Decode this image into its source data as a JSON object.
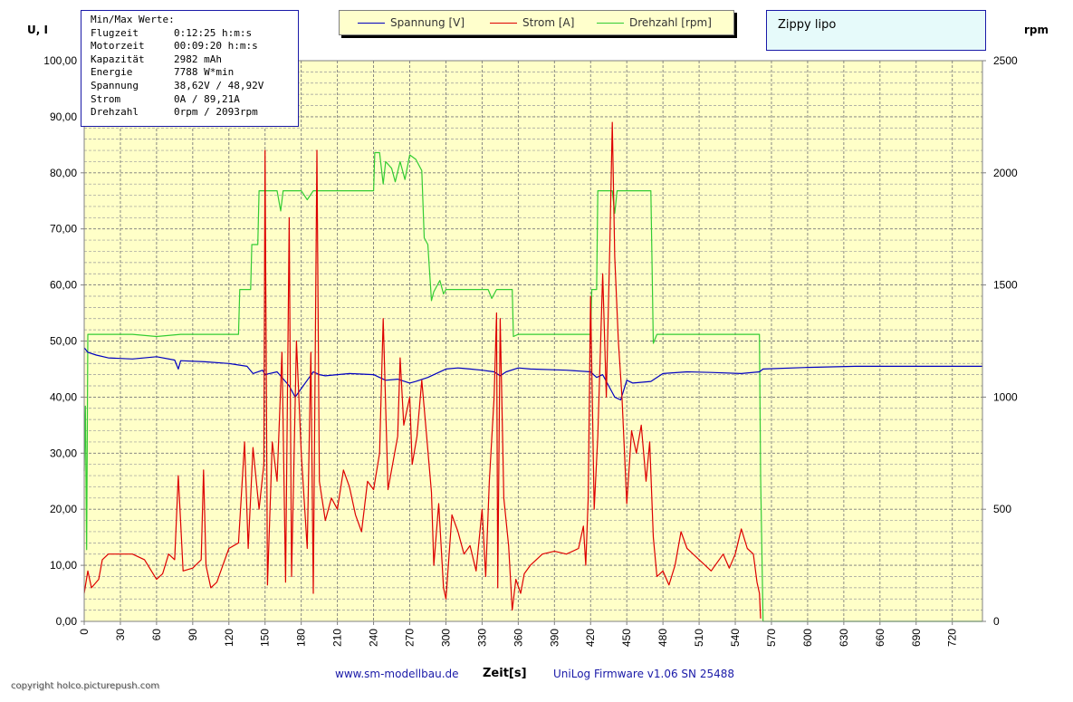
{
  "chart_data": {
    "type": "line",
    "title": "Zippy lipo",
    "xlabel": "Zeit[s]",
    "ylabel_left": "U, I",
    "ylabel_right": "rpm",
    "xlim": [
      0,
      745
    ],
    "ylim_left": [
      0,
      100
    ],
    "ylim_right": [
      0,
      2500
    ],
    "x_ticks": [
      "0",
      "30",
      "60",
      "90",
      "120",
      "150",
      "180",
      "210",
      "240",
      "270",
      "300",
      "330",
      "360",
      "390",
      "420",
      "450",
      "480",
      "510",
      "540",
      "570",
      "600",
      "630",
      "660",
      "690",
      "720"
    ],
    "y_ticks_left": [
      "0,00",
      "10,00",
      "20,00",
      "30,00",
      "40,00",
      "50,00",
      "60,00",
      "70,00",
      "80,00",
      "90,00",
      "100,00"
    ],
    "y_ticks_right": [
      "0",
      "500",
      "1000",
      "1500",
      "2000",
      "2500"
    ],
    "grid": true,
    "legend_position": "top-center",
    "background_color": "#ffffc8",
    "series": [
      {
        "name": "Spannung [V]",
        "axis": "left",
        "color": "#0000c0",
        "points": [
          [
            0,
            48.8
          ],
          [
            3,
            48.0
          ],
          [
            10,
            47.5
          ],
          [
            20,
            47.0
          ],
          [
            40,
            46.8
          ],
          [
            60,
            47.2
          ],
          [
            75,
            46.6
          ],
          [
            78,
            45.0
          ],
          [
            80,
            46.5
          ],
          [
            100,
            46.3
          ],
          [
            120,
            46.0
          ],
          [
            135,
            45.5
          ],
          [
            140,
            44.2
          ],
          [
            148,
            44.8
          ],
          [
            150,
            44.0
          ],
          [
            160,
            44.5
          ],
          [
            170,
            42.0
          ],
          [
            175,
            40.0
          ],
          [
            185,
            43.0
          ],
          [
            190,
            44.5
          ],
          [
            195,
            44.0
          ],
          [
            200,
            43.8
          ],
          [
            220,
            44.2
          ],
          [
            240,
            44.0
          ],
          [
            245,
            43.5
          ],
          [
            250,
            43.0
          ],
          [
            260,
            43.2
          ],
          [
            270,
            42.5
          ],
          [
            275,
            42.8
          ],
          [
            285,
            43.5
          ],
          [
            300,
            45.0
          ],
          [
            310,
            45.2
          ],
          [
            320,
            45.0
          ],
          [
            330,
            44.8
          ],
          [
            340,
            44.5
          ],
          [
            345,
            43.8
          ],
          [
            350,
            44.5
          ],
          [
            360,
            45.2
          ],
          [
            370,
            45.0
          ],
          [
            400,
            44.8
          ],
          [
            420,
            44.5
          ],
          [
            425,
            43.5
          ],
          [
            430,
            44.0
          ],
          [
            440,
            40.0
          ],
          [
            445,
            39.5
          ],
          [
            450,
            43.0
          ],
          [
            455,
            42.5
          ],
          [
            470,
            42.8
          ],
          [
            480,
            44.2
          ],
          [
            500,
            44.5
          ],
          [
            520,
            44.4
          ],
          [
            545,
            44.2
          ],
          [
            560,
            44.5
          ],
          [
            563,
            45.0
          ],
          [
            600,
            45.3
          ],
          [
            640,
            45.5
          ],
          [
            745,
            45.5
          ]
        ]
      },
      {
        "name": "Strom [A]",
        "axis": "left",
        "color": "#dd0000",
        "points": [
          [
            0,
            5.0
          ],
          [
            3,
            9.0
          ],
          [
            6,
            6.0
          ],
          [
            12,
            7.5
          ],
          [
            15,
            11.0
          ],
          [
            20,
            12.0
          ],
          [
            40,
            12.0
          ],
          [
            50,
            11.0
          ],
          [
            60,
            7.5
          ],
          [
            65,
            8.5
          ],
          [
            70,
            12.0
          ],
          [
            75,
            11.0
          ],
          [
            78,
            26.0
          ],
          [
            82,
            9.0
          ],
          [
            90,
            9.5
          ],
          [
            97,
            11.0
          ],
          [
            99,
            27.0
          ],
          [
            101,
            10.0
          ],
          [
            105,
            6.0
          ],
          [
            110,
            7.0
          ],
          [
            115,
            10.0
          ],
          [
            120,
            13.0
          ],
          [
            128,
            14.0
          ],
          [
            133,
            32.0
          ],
          [
            136,
            13.0
          ],
          [
            140,
            31.0
          ],
          [
            145,
            20.0
          ],
          [
            149,
            28.0
          ],
          [
            150,
            84.0
          ],
          [
            152,
            6.5
          ],
          [
            156,
            32.0
          ],
          [
            160,
            25.0
          ],
          [
            164,
            48.0
          ],
          [
            167,
            7.0
          ],
          [
            170,
            72.0
          ],
          [
            172,
            8.0
          ],
          [
            176,
            50.0
          ],
          [
            180,
            30.0
          ],
          [
            185,
            13.0
          ],
          [
            188,
            48.0
          ],
          [
            190,
            5.0
          ],
          [
            193,
            84.0
          ],
          [
            195,
            25.0
          ],
          [
            200,
            18.0
          ],
          [
            205,
            22.0
          ],
          [
            210,
            20.0
          ],
          [
            215,
            27.0
          ],
          [
            220,
            24.0
          ],
          [
            225,
            19.0
          ],
          [
            230,
            16.0
          ],
          [
            235,
            25.0
          ],
          [
            240,
            23.5
          ],
          [
            245,
            30.0
          ],
          [
            248,
            54.0
          ],
          [
            252,
            23.5
          ],
          [
            260,
            33.0
          ],
          [
            262,
            47.0
          ],
          [
            265,
            35.0
          ],
          [
            270,
            40.0
          ],
          [
            272,
            28.0
          ],
          [
            276,
            33.0
          ],
          [
            280,
            43.0
          ],
          [
            284,
            33.0
          ],
          [
            288,
            23.0
          ],
          [
            290,
            10.0
          ],
          [
            294,
            21.0
          ],
          [
            298,
            6.0
          ],
          [
            300,
            4.0
          ],
          [
            305,
            19.0
          ],
          [
            310,
            16.0
          ],
          [
            315,
            12.0
          ],
          [
            320,
            13.5
          ],
          [
            325,
            9.0
          ],
          [
            330,
            20.0
          ],
          [
            333,
            8.0
          ],
          [
            336,
            25.0
          ],
          [
            340,
            40.0
          ],
          [
            342,
            55.0
          ],
          [
            343,
            6.0
          ],
          [
            345,
            54.0
          ],
          [
            348,
            22.0
          ],
          [
            352,
            13.5
          ],
          [
            355,
            2.0
          ],
          [
            358,
            7.5
          ],
          [
            362,
            5.0
          ],
          [
            365,
            8.5
          ],
          [
            370,
            10.0
          ],
          [
            380,
            12.0
          ],
          [
            390,
            12.5
          ],
          [
            400,
            12.0
          ],
          [
            410,
            13.0
          ],
          [
            414,
            17.0
          ],
          [
            416,
            10.0
          ],
          [
            418,
            22.0
          ],
          [
            420,
            58.0
          ],
          [
            423,
            20.0
          ],
          [
            426,
            33.0
          ],
          [
            430,
            62.0
          ],
          [
            433,
            40.0
          ],
          [
            436,
            68.0
          ],
          [
            438,
            89.0
          ],
          [
            440,
            65.0
          ],
          [
            443,
            50.0
          ],
          [
            446,
            40.0
          ],
          [
            450,
            21.0
          ],
          [
            454,
            34.0
          ],
          [
            458,
            30.0
          ],
          [
            462,
            35.0
          ],
          [
            466,
            25.0
          ],
          [
            469,
            32.0
          ],
          [
            472,
            15.0
          ],
          [
            475,
            8.0
          ],
          [
            480,
            9.0
          ],
          [
            485,
            6.5
          ],
          [
            490,
            10.0
          ],
          [
            495,
            16.0
          ],
          [
            500,
            13.0
          ],
          [
            510,
            11.0
          ],
          [
            520,
            9.0
          ],
          [
            530,
            12.0
          ],
          [
            535,
            9.5
          ],
          [
            540,
            12.0
          ],
          [
            545,
            16.5
          ],
          [
            550,
            13.0
          ],
          [
            555,
            12.0
          ],
          [
            558,
            7.0
          ],
          [
            560,
            5.0
          ],
          [
            561,
            0.5
          ]
        ]
      },
      {
        "name": "Drehzahl [rpm]",
        "axis": "right",
        "color": "#33cc33",
        "points": [
          [
            0,
            670
          ],
          [
            1,
            960
          ],
          [
            2,
            320
          ],
          [
            3,
            1280
          ],
          [
            40,
            1280
          ],
          [
            60,
            1270
          ],
          [
            80,
            1280
          ],
          [
            128,
            1280
          ],
          [
            129,
            1480
          ],
          [
            138,
            1480
          ],
          [
            139,
            1680
          ],
          [
            144,
            1680
          ],
          [
            145,
            1920
          ],
          [
            160,
            1920
          ],
          [
            163,
            1830
          ],
          [
            165,
            1920
          ],
          [
            180,
            1920
          ],
          [
            185,
            1880
          ],
          [
            190,
            1920
          ],
          [
            240,
            1920
          ],
          [
            241,
            2090
          ],
          [
            245,
            2090
          ],
          [
            248,
            1950
          ],
          [
            250,
            2050
          ],
          [
            255,
            2020
          ],
          [
            258,
            1960
          ],
          [
            262,
            2050
          ],
          [
            266,
            1970
          ],
          [
            270,
            2080
          ],
          [
            275,
            2060
          ],
          [
            280,
            2010
          ],
          [
            282,
            1710
          ],
          [
            285,
            1680
          ],
          [
            288,
            1430
          ],
          [
            290,
            1470
          ],
          [
            295,
            1520
          ],
          [
            298,
            1460
          ],
          [
            300,
            1480
          ],
          [
            335,
            1480
          ],
          [
            338,
            1440
          ],
          [
            342,
            1480
          ],
          [
            355,
            1480
          ],
          [
            356,
            1270
          ],
          [
            360,
            1280
          ],
          [
            420,
            1280
          ],
          [
            421,
            1480
          ],
          [
            425,
            1480
          ],
          [
            426,
            1920
          ],
          [
            438,
            1920
          ],
          [
            440,
            1820
          ],
          [
            442,
            1920
          ],
          [
            470,
            1920
          ],
          [
            472,
            1240
          ],
          [
            475,
            1280
          ],
          [
            560,
            1280
          ],
          [
            561,
            650
          ],
          [
            563,
            0
          ],
          [
            745,
            0
          ]
        ]
      }
    ]
  },
  "stats_box": {
    "heading": "Min/Max Werte:",
    "rows": [
      {
        "label": "Flugzeit",
        "value": "0:12:25 h:m:s"
      },
      {
        "label": "Motorzeit",
        "value": "00:09:20 h:m:s"
      },
      {
        "label": "Kapazität",
        "value": "2982 mAh"
      },
      {
        "label": "Energie",
        "value": "7788 W*min"
      },
      {
        "label": "Spannung",
        "value": "38,62V / 48,92V"
      },
      {
        "label": "Strom",
        "value": "0A / 89,21A"
      },
      {
        "label": "Drehzahl",
        "value": "0rpm / 2093rpm"
      }
    ]
  },
  "footer": {
    "website": "www.sm-modellbau.de",
    "firmware": "UniLog Firmware v1.06 SN 25488",
    "copyright": "copyright holco.picturepush.com"
  }
}
